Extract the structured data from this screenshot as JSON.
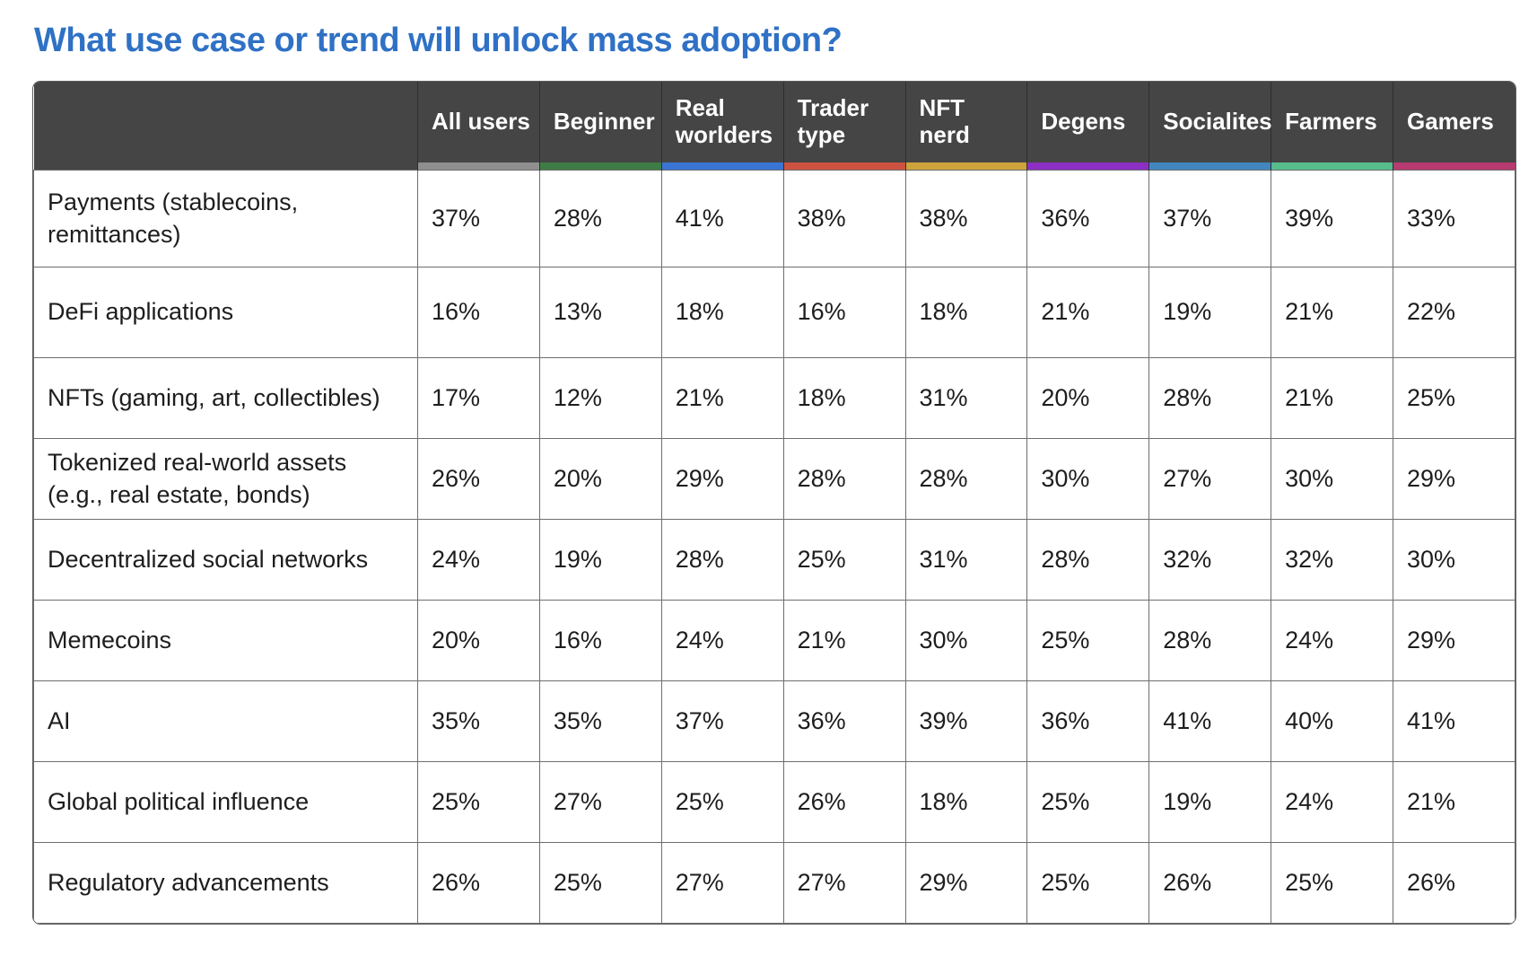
{
  "page_title": "What use case or trend will unlock mass adoption?",
  "style": {
    "title_color": "#2f71c5",
    "header_bg": "#454545",
    "body_border": "#6e6e6e",
    "text_color": "#1d1d1d"
  },
  "chart_data": {
    "type": "table",
    "title": "What use case or trend will unlock mass adoption?",
    "value_unit": "%",
    "legend_position": "column-header-underline-accents",
    "grid": true,
    "columns": [
      {
        "label": "All users",
        "accent": "#8f8f8f",
        "wrap": false
      },
      {
        "label": "Beginner",
        "accent": "#3e7c45",
        "wrap": false
      },
      {
        "label": "Real worlders",
        "accent": "#3a75d4",
        "wrap": true
      },
      {
        "label": "Trader type",
        "accent": "#cd5340",
        "wrap": true
      },
      {
        "label": "NFT nerd",
        "accent": "#cfa33c",
        "wrap": true
      },
      {
        "label": "Degens",
        "accent": "#8c2fc4",
        "wrap": false
      },
      {
        "label": "Socialites",
        "accent": "#4187bd",
        "wrap": false
      },
      {
        "label": "Farmers",
        "accent": "#57bd8d",
        "wrap": false
      },
      {
        "label": "Gamers",
        "accent": "#b73a70",
        "wrap": false
      }
    ],
    "rows": [
      {
        "label": "Payments (stablecoins, remittances)",
        "values": [
          "37%",
          "28%",
          "41%",
          "38%",
          "38%",
          "36%",
          "37%",
          "39%",
          "33%"
        ]
      },
      {
        "label": "DeFi applications",
        "values": [
          "16%",
          "13%",
          "18%",
          "16%",
          "18%",
          "21%",
          "19%",
          "21%",
          "22%"
        ]
      },
      {
        "label": "NFTs (gaming, art, collectibles)",
        "values": [
          "17%",
          "12%",
          "21%",
          "18%",
          "31%",
          "20%",
          "28%",
          "21%",
          "25%"
        ]
      },
      {
        "label": "Tokenized real-world assets (e.g., real estate, bonds)",
        "values": [
          "26%",
          "20%",
          "29%",
          "28%",
          "28%",
          "30%",
          "27%",
          "30%",
          "29%"
        ]
      },
      {
        "label": "Decentralized social networks",
        "values": [
          "24%",
          "19%",
          "28%",
          "25%",
          "31%",
          "28%",
          "32%",
          "32%",
          "30%"
        ]
      },
      {
        "label": "Memecoins",
        "values": [
          "20%",
          "16%",
          "24%",
          "21%",
          "30%",
          "25%",
          "28%",
          "24%",
          "29%"
        ]
      },
      {
        "label": "AI",
        "values": [
          "35%",
          "35%",
          "37%",
          "36%",
          "39%",
          "36%",
          "41%",
          "40%",
          "41%"
        ]
      },
      {
        "label": "Global political influence",
        "values": [
          "25%",
          "27%",
          "25%",
          "26%",
          "18%",
          "25%",
          "19%",
          "24%",
          "21%"
        ]
      },
      {
        "label": "Regulatory advancements",
        "values": [
          "26%",
          "25%",
          "27%",
          "27%",
          "29%",
          "25%",
          "26%",
          "25%",
          "26%"
        ]
      }
    ]
  }
}
